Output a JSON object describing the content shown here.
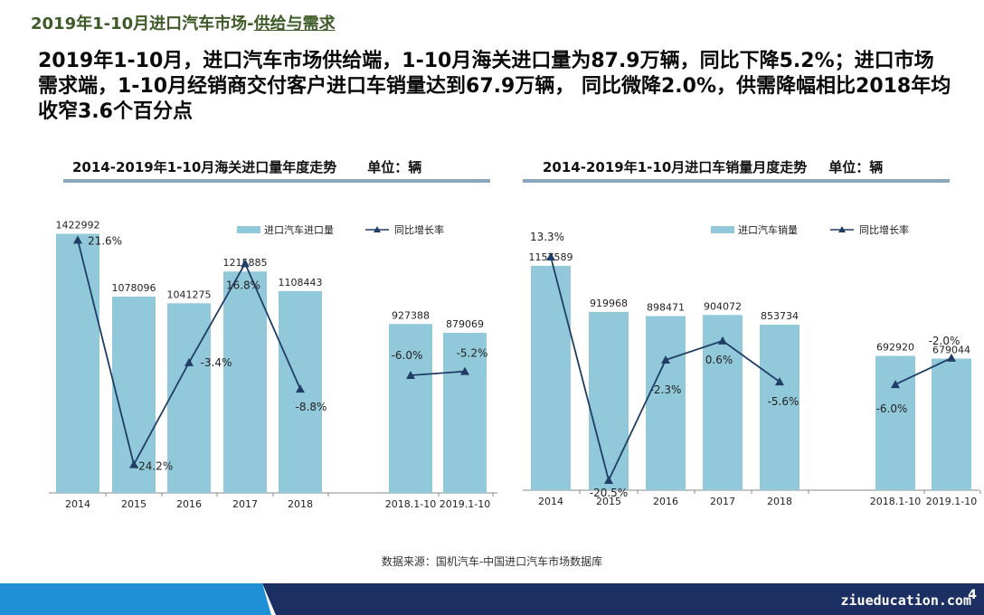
{
  "page": {
    "title_prefix": "2019年1-10月进口汽车市场-",
    "title_highlight": "供给与需求",
    "summary": "2019年1-10月，进口汽车市场供给端，1-10月海关进口量为87.9万辆，同比下降5.2%；进口市场需求端，1-10月经销商交付客户进口车销量达到67.9万辆， 同比微降2.0%，供需降幅相比2018年均收窄3.6个百分点",
    "source": "数据来源：国机汽车-中国进口汽车市场数据库",
    "footer": "ziueducation.com",
    "page_number": "4"
  },
  "colors": {
    "title": "#3d5a27",
    "bar": "#92c9da",
    "line": "#1f3d66",
    "rule": "#8aa7bd",
    "footer_dark": "#1b2f63",
    "footer_light": "#1f8fd6"
  },
  "chart_data": [
    {
      "type": "bar",
      "title": "2014-2019年1-10月海关进口量年度走势",
      "unit": "单位：辆",
      "categories": [
        "2014",
        "2015",
        "2016",
        "2017",
        "2018",
        "2018.1-10",
        "2019.1-10"
      ],
      "series": [
        {
          "name": "进口汽车进口量",
          "type": "bar",
          "values": [
            1422992,
            1078096,
            1041275,
            1215885,
            1108443,
            927388,
            879069
          ],
          "labels": [
            "1422992",
            "1078096",
            "1041275",
            "1215885",
            "1108443",
            "927388",
            "879069"
          ]
        },
        {
          "name": "同比增长率",
          "type": "line",
          "values": [
            21.6,
            -24.2,
            -3.4,
            16.8,
            -8.8,
            -6.0,
            -5.2
          ],
          "labels": [
            "21.6%",
            "-24.2%",
            "-3.4%",
            "16.8%",
            "-8.8%",
            "-6.0%",
            "-5.2%"
          ],
          "segments": [
            [
              0,
              4
            ],
            [
              5,
              6
            ]
          ]
        }
      ],
      "bar_max": 1480000,
      "line_range": [
        -30,
        25
      ],
      "legend_position": "top"
    },
    {
      "type": "bar",
      "title": "2014-2019年1-10月进口车销量月度走势",
      "unit": "单位：辆",
      "categories": [
        "2014",
        "2015",
        "2016",
        "2017",
        "2018",
        "2018.1-10",
        "2019.1-10"
      ],
      "series": [
        {
          "name": "进口汽车销量",
          "type": "bar",
          "values": [
            1157589,
            919968,
            898471,
            904072,
            853734,
            692920,
            679044
          ],
          "labels": [
            "1157589",
            "919968",
            "898471",
            "904072",
            "853734",
            "692920",
            "679044"
          ]
        },
        {
          "name": "同比增长率",
          "type": "line",
          "values": [
            13.3,
            -20.5,
            -2.3,
            0.6,
            -5.6,
            -6.0,
            -2.0
          ],
          "labels": [
            "13.3%",
            "-20.5%",
            "-2.3%",
            "0.6%",
            "-5.6%",
            "-6.0%",
            "-2.0%"
          ],
          "segments": [
            [
              0,
              4
            ],
            [
              5,
              6
            ]
          ]
        }
      ],
      "bar_max": 1330000,
      "line_range": [
        -22,
        17
      ],
      "legend_position": "top"
    }
  ]
}
